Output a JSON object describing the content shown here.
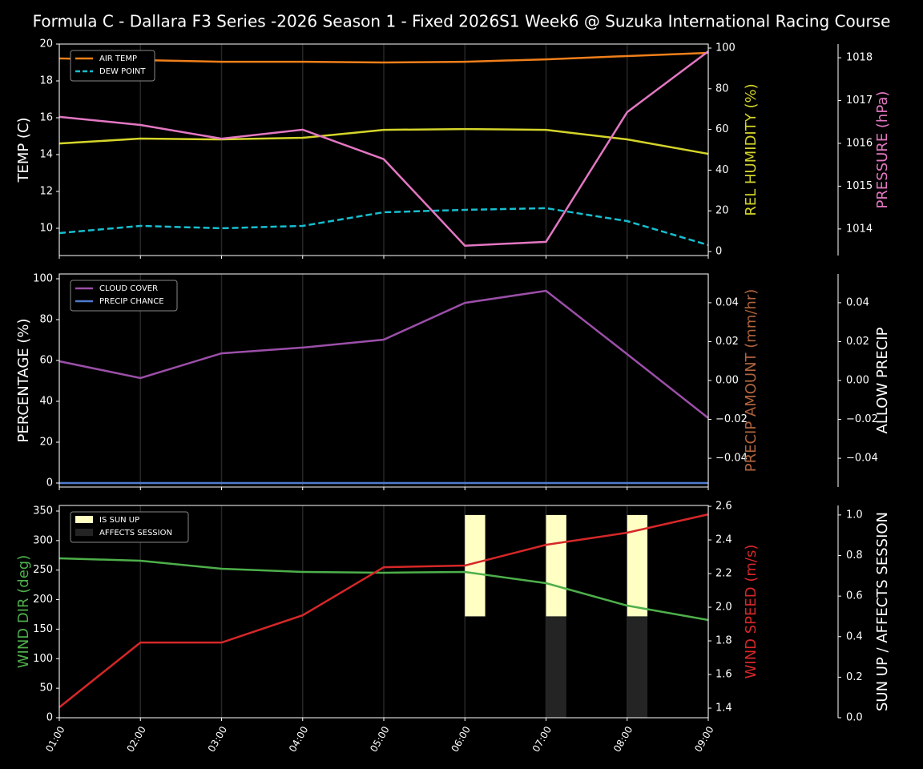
{
  "chart_data": [
    {
      "type": "line",
      "title": "Formula C - Dallara F3 Series -2026 Season 1 - Fixed 2026S1 Week6 @ Suzuka International Racing Course",
      "legend": "upper left",
      "ylabel": "TEMP (C)",
      "ylabel_color": "#ffffff",
      "ylim": [
        8.52,
        20
      ],
      "yticks": [
        10,
        12,
        14,
        16,
        18,
        20
      ],
      "y2label": "REL HUMIDITY (%)",
      "y2label_color": "#d4d42a",
      "y2lim": [
        -1.97,
        101.97
      ],
      "y2ticks": [
        0,
        20,
        40,
        60,
        80,
        100
      ],
      "y3label": "PRESSURE (hPa)",
      "y3label_color": "#e377c2",
      "y3lim": [
        1013.38,
        1018.32
      ],
      "y3ticks": [
        1014,
        1015,
        1016,
        1017,
        1018
      ],
      "series": [
        {
          "name": "AIR TEMP",
          "color": "#f07f1a",
          "axis": "y",
          "values": [
            19.22,
            19.13,
            19.04,
            19.04,
            19.0,
            19.04,
            19.17,
            19.35,
            19.52
          ]
        },
        {
          "name": "DEW POINT",
          "color": "#17becf",
          "axis": "y",
          "dashed": true,
          "values": [
            9.74,
            10.13,
            10.0,
            10.13,
            10.87,
            11.0,
            11.09,
            10.39,
            9.09
          ]
        },
        {
          "color": "#d4d42a",
          "axis": "y2",
          "values": [
            53.1,
            55.5,
            55.1,
            55.9,
            59.8,
            60.2,
            59.8,
            55.1,
            48.0
          ]
        },
        {
          "color": "#e377c2",
          "axis": "y3",
          "values": [
            1016.62,
            1016.43,
            1016.11,
            1016.32,
            1015.63,
            1013.61,
            1013.7,
            1016.73,
            1018.15
          ]
        }
      ]
    },
    {
      "type": "line",
      "legend": "upper left",
      "ylabel": "PERCENTAGE (%)",
      "ylabel_color": "#ffffff",
      "ylim": [
        -1.96,
        102.35
      ],
      "yticks": [
        0,
        20,
        40,
        60,
        80,
        100
      ],
      "y2label": "PRECIP AMOUNT (mm/hr)",
      "y2label_color": "#b0643c",
      "y2lim": [
        -0.0548,
        0.0548
      ],
      "y2ticks": [
        {
          "value": -0.04,
          "label": "−0.04"
        },
        {
          "value": -0.02,
          "label": "−0.02"
        },
        {
          "value": 0,
          "label": "0.00"
        },
        0.02,
        0.04
      ],
      "y3label": "ALLOW PRECIP",
      "y3label_color": "#ffffff",
      "y3lim": [
        -0.0548,
        0.0548
      ],
      "y3ticks": [
        {
          "value": -0.04,
          "label": "−0.04"
        },
        {
          "value": -0.02,
          "label": "−0.02"
        },
        {
          "value": 0,
          "label": "0.00"
        },
        0.02,
        0.04
      ],
      "series": [
        {
          "name": "CLOUD COVER",
          "color": "#9b4fa8",
          "axis": "y",
          "values": [
            59.6,
            51.4,
            63.5,
            66.3,
            70.2,
            88.2,
            94.1,
            63.1,
            31.8
          ]
        },
        {
          "name": "PRECIP CHANCE",
          "color": "#4e7ccf",
          "axis": "y",
          "values": [
            0,
            0,
            0,
            0,
            0,
            0,
            0,
            0,
            0
          ]
        }
      ]
    },
    {
      "type": "line",
      "legend": "upper left",
      "categories": [
        "01:00",
        "02:00",
        "03:00",
        "04:00",
        "05:00",
        "06:00",
        "07:00",
        "08:00",
        "09:00"
      ],
      "ylabel": "WIND DIR (deg)",
      "ylabel_color": "#4daf4a",
      "ylim": [
        0,
        359.5
      ],
      "yticks": [
        0,
        50,
        100,
        150,
        200,
        250,
        300,
        350
      ],
      "y2label": "WIND SPEED (m/s)",
      "y2label_color": "#d62728",
      "y2lim": [
        1.343,
        2.605
      ],
      "y2ticks": [
        1.4,
        1.6,
        1.8,
        {
          "value": 2.0,
          "label": "2.0"
        },
        2.2,
        2.4,
        2.6
      ],
      "y3label": "SUN UP / AFFECTS SESSION",
      "y3label_color": "#ffffff",
      "y3lim": [
        0,
        1.047
      ],
      "y3ticks": [
        {
          "value": 0,
          "label": "0.0"
        },
        0.2,
        0.4,
        0.6,
        0.8,
        {
          "value": 1.0,
          "label": "1.0"
        }
      ],
      "series": [
        {
          "name": "IS SUN UP",
          "type": "bar",
          "color": "#ffffc4",
          "axis": "y3",
          "base": 0.5,
          "values": [
            0,
            0,
            0,
            0,
            0,
            0.5,
            0.5,
            0.5,
            0
          ]
        },
        {
          "name": "AFFECTS SESSION",
          "type": "bar",
          "color": "#242424",
          "axis": "y3",
          "base": 0,
          "values": [
            0,
            0,
            0,
            0,
            0,
            0,
            0.5,
            0.5,
            0
          ]
        },
        {
          "color": "#4daf4a",
          "axis": "y",
          "values": [
            270.0,
            265.9,
            252.3,
            246.9,
            245.6,
            246.9,
            227.9,
            189.9,
            165.5
          ]
        },
        {
          "color": "#d62728",
          "axis": "y2",
          "values": [
            1.405,
            1.79,
            1.79,
            1.952,
            2.238,
            2.248,
            2.371,
            2.443,
            2.552
          ]
        }
      ]
    }
  ]
}
